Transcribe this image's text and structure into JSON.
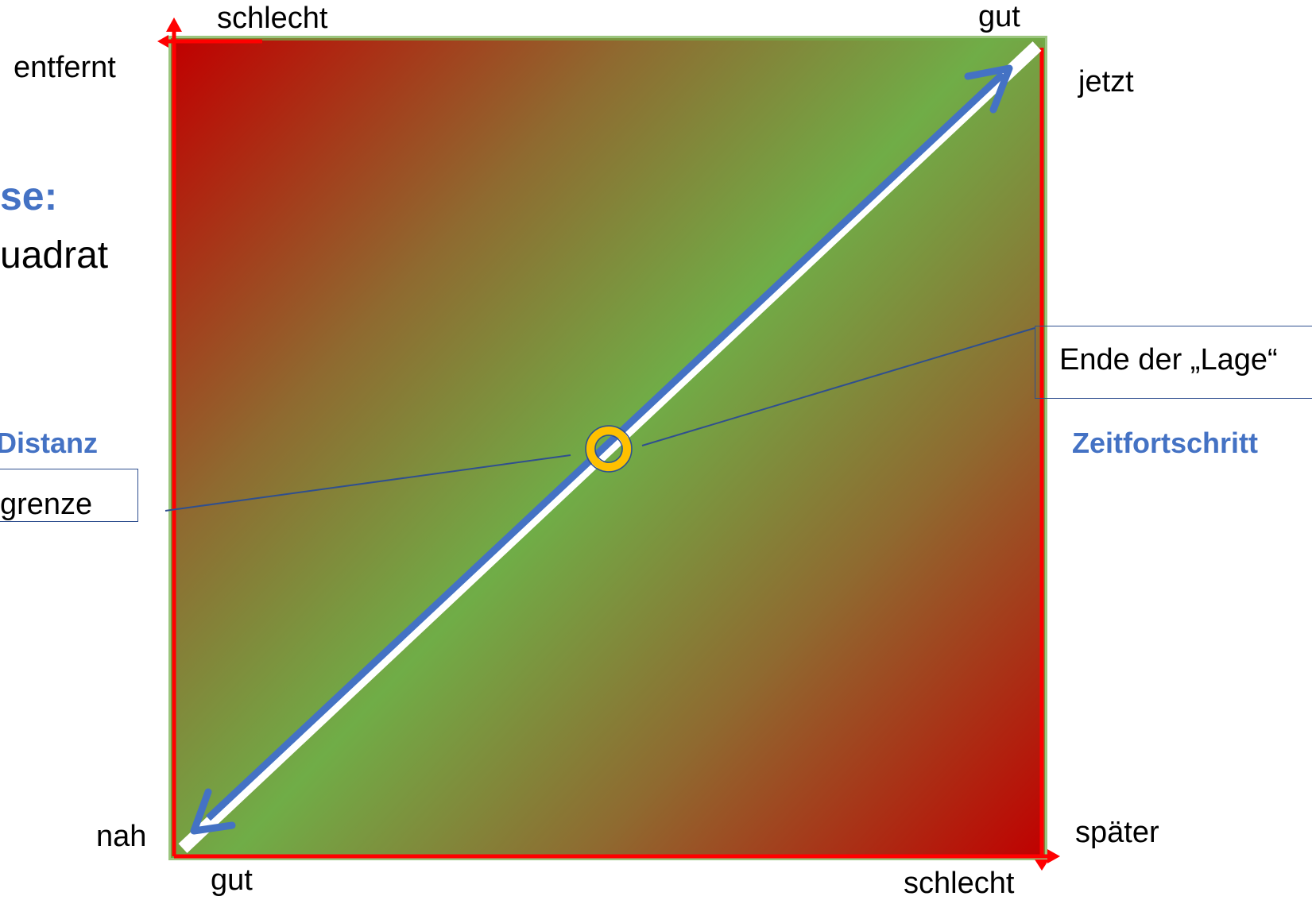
{
  "top_axis": {
    "left_label": "schlecht",
    "right_label": "gut"
  },
  "bottom_axis": {
    "left_label": "gut",
    "right_label": "schlecht"
  },
  "left_axis": {
    "top_label": "entfernt",
    "bottom_label": "nah",
    "title": "Distanz"
  },
  "right_axis": {
    "top_label": "jetzt",
    "bottom_label": "später",
    "title": "Zeitfortschritt"
  },
  "slide_fragments": {
    "heading": "se:",
    "subheading": "uadrat"
  },
  "callouts": {
    "right": "Ende der „Lage“",
    "left": "grenze"
  },
  "colors": {
    "bad": "#C00000",
    "good": "#70AD47",
    "axis": "#FF0000",
    "diagonal": "#4472C4",
    "marker": "#FFC000",
    "connector": "#2F4F8F",
    "accent_text": "#4472C4"
  },
  "icons": [
    "arrow-up-icon",
    "arrow-right-icon",
    "arrow-left-icon",
    "arrow-double-diagonal-icon",
    "ring-marker-icon"
  ]
}
